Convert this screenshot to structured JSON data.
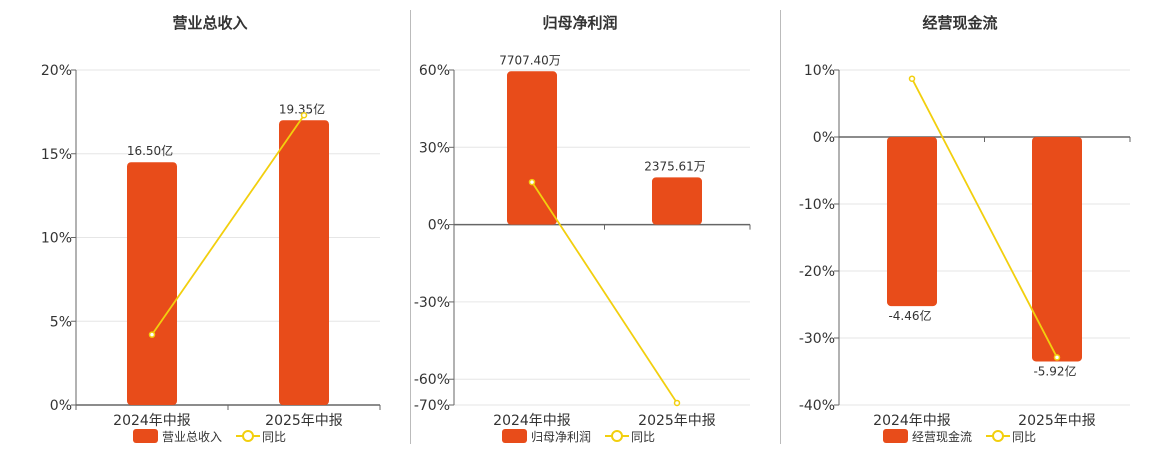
{
  "colors": {
    "bar": "#E84C1A",
    "line": "#F2CF0E",
    "grid": "#E6E6E6",
    "axis": "#666666"
  },
  "legend": {
    "bar_icon": "rounded-rect",
    "line_icon": "line-with-circle"
  },
  "chart_data": [
    {
      "type": "bar",
      "title": "营业总收入",
      "categories": [
        "2024年中报",
        "2025年中报"
      ],
      "yticks": [
        "20%",
        "15%",
        "10%",
        "5%",
        "0%"
      ],
      "ylim": [
        0,
        20
      ],
      "legend_position": "bottom",
      "series": [
        {
          "name": "营业总收入",
          "type": "bar",
          "values": [
            16.5,
            19.35
          ],
          "unit": "亿",
          "data_labels": [
            "16.50亿",
            "19.35亿"
          ]
        },
        {
          "name": "同比",
          "type": "line",
          "values": [
            4.2,
            17.3
          ],
          "unit": "%"
        }
      ]
    },
    {
      "type": "bar",
      "title": "归母净利润",
      "categories": [
        "2024年中报",
        "2025年中报"
      ],
      "yticks": [
        "60%",
        "30%",
        "0%",
        "-30%",
        "-60%",
        "-70%"
      ],
      "ylim": [
        -70,
        60
      ],
      "legend_position": "bottom",
      "series": [
        {
          "name": "归母净利润",
          "type": "bar",
          "values": [
            7707.4,
            2375.61
          ],
          "unit": "万",
          "data_labels": [
            "7707.40万",
            "2375.61万"
          ]
        },
        {
          "name": "同比",
          "type": "line",
          "values": [
            16.5,
            -69.2
          ],
          "unit": "%"
        }
      ]
    },
    {
      "type": "bar",
      "title": "经营现金流",
      "categories": [
        "2024年中报",
        "2025年中报"
      ],
      "yticks": [
        "10%",
        "0%",
        "-10%",
        "-20%",
        "-30%",
        "-40%"
      ],
      "ylim": [
        -40,
        10
      ],
      "legend_position": "bottom",
      "series": [
        {
          "name": "经营现金流",
          "type": "bar",
          "values": [
            -4.46,
            -5.92
          ],
          "unit": "亿",
          "data_labels": [
            "-4.46亿",
            "-5.92亿"
          ]
        },
        {
          "name": "同比",
          "type": "line",
          "values": [
            8.7,
            -32.9
          ],
          "unit": "%"
        }
      ]
    }
  ]
}
